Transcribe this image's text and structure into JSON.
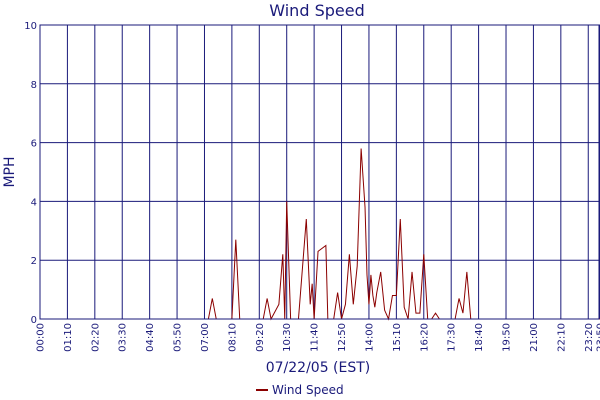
{
  "chart_data": {
    "type": "line",
    "title": "Wind Speed",
    "xlabel": "07/22/05 (EST)",
    "ylabel": "MPH",
    "ylim": [
      0,
      10
    ],
    "yticks": [
      "0",
      "2",
      "4",
      "6",
      "8",
      "10"
    ],
    "xticks": [
      "00:00",
      "01:10",
      "02:20",
      "03:30",
      "04:40",
      "05:50",
      "07:00",
      "08:10",
      "09:20",
      "10:30",
      "11:40",
      "12:50",
      "14:00",
      "15:10",
      "16:20",
      "17:30",
      "18:40",
      "19:50",
      "21:00",
      "22:10",
      "23:20",
      "23:50"
    ],
    "grid": true,
    "legend": {
      "position": "bottom",
      "entries": [
        "Wind Speed"
      ]
    },
    "colors": {
      "series": "#8b0000",
      "grid": "#1a1a7a",
      "frame": "#1a1a7a",
      "text": "#1a1a7a"
    },
    "series": [
      {
        "name": "Wind Speed",
        "x": [
          "00:00",
          "07:10",
          "07:20",
          "07:30",
          "07:40",
          "08:10",
          "08:20",
          "08:30",
          "08:40",
          "09:30",
          "09:40",
          "09:50",
          "10:10",
          "10:20",
          "10:25",
          "10:30",
          "10:40",
          "10:50",
          "11:00",
          "11:20",
          "11:30",
          "11:35",
          "11:40",
          "11:50",
          "12:10",
          "12:15",
          "12:20",
          "12:30",
          "12:40",
          "12:50",
          "13:00",
          "13:10",
          "13:20",
          "13:30",
          "13:40",
          "13:50",
          "13:55",
          "14:00",
          "14:05",
          "14:10",
          "14:15",
          "14:20",
          "14:30",
          "14:40",
          "14:50",
          "15:00",
          "15:10",
          "15:20",
          "15:30",
          "15:40",
          "15:50",
          "16:00",
          "16:10",
          "16:20",
          "16:30",
          "16:40",
          "16:50",
          "17:00",
          "17:10",
          "17:20",
          "17:30",
          "17:40",
          "17:50",
          "18:00",
          "18:10",
          "18:20",
          "18:30",
          "18:40",
          "23:50"
        ],
        "values": [
          0,
          0,
          0.7,
          0,
          0,
          0,
          2.7,
          0,
          0,
          0,
          0.7,
          0,
          0.5,
          2.2,
          0,
          4,
          0,
          0,
          0,
          3.4,
          0.5,
          1.2,
          0,
          2.3,
          2.5,
          0,
          0,
          0,
          0.9,
          0,
          0.5,
          2.2,
          0.5,
          1.8,
          5.8,
          3.8,
          1.5,
          0.5,
          1.5,
          0.8,
          0.4,
          0.9,
          1.6,
          0.3,
          0,
          0.8,
          0.8,
          3.4,
          0.4,
          0,
          1.6,
          0.2,
          0.2,
          2.2,
          0,
          0,
          0.2,
          0,
          0,
          0,
          0,
          0,
          0.7,
          0.2,
          1.6,
          0,
          0,
          0,
          0
        ]
      }
    ]
  }
}
